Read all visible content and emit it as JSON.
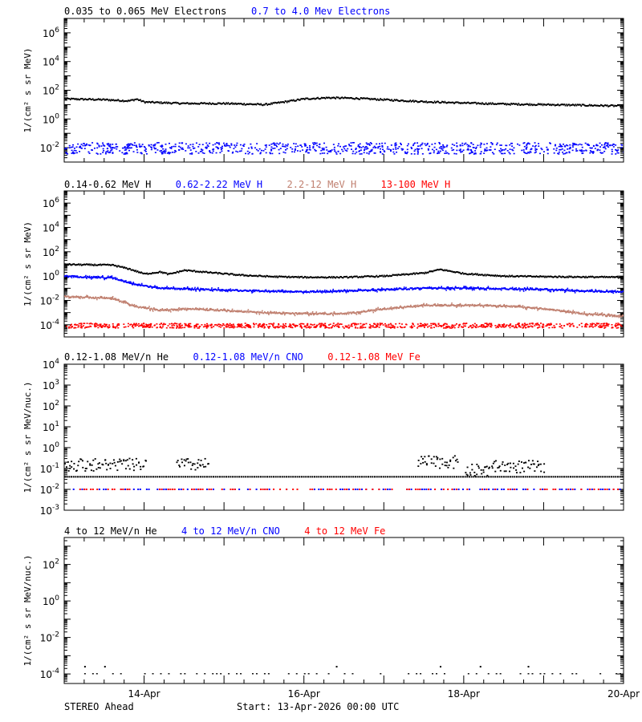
{
  "footer": {
    "left": "STEREO Ahead",
    "center": "Start: 13-Apr-2026 00:00 UTC"
  },
  "x_axis": {
    "range_days": [
      0,
      7
    ],
    "tick_positions_days": [
      1,
      3,
      5,
      7
    ],
    "tick_labels": [
      "14-Apr",
      "16-Apr",
      "18-Apr",
      "20-Apr"
    ]
  },
  "chart_data": [
    {
      "type": "scatter",
      "title_entries": [
        {
          "text": "0.035 to 0.065 MeV Electrons",
          "color": "#000000"
        },
        {
          "text": "0.7 to 4.0 Mev Electrons",
          "color": "#0000ff"
        }
      ],
      "ylabel": "1/(cm² s sr MeV)",
      "y_scale": "log",
      "ylim": [
        0.001,
        10000000
      ],
      "y_ticks": [
        {
          "v": 0.01,
          "mant": "10",
          "exp": "-2"
        },
        {
          "v": 1,
          "mant": "10",
          "exp": "0"
        },
        {
          "v": 100,
          "mant": "10",
          "exp": "2"
        },
        {
          "v": 10000,
          "mant": "10",
          "exp": "4"
        },
        {
          "v": 1000000,
          "mant": "10",
          "exp": "6"
        }
      ],
      "series": [
        {
          "color": "#000000",
          "points": [
            [
              0,
              25
            ],
            [
              0.5,
              22
            ],
            [
              0.8,
              18
            ],
            [
              0.9,
              24
            ],
            [
              1.0,
              15
            ],
            [
              1.5,
              12
            ],
            [
              2.0,
              12
            ],
            [
              2.5,
              10
            ],
            [
              2.7,
              14
            ],
            [
              3.0,
              25
            ],
            [
              3.3,
              30
            ],
            [
              3.6,
              28
            ],
            [
              4.0,
              22
            ],
            [
              4.5,
              16
            ],
            [
              5.0,
              13
            ],
            [
              5.5,
              11
            ],
            [
              6.0,
              10
            ],
            [
              6.5,
              9
            ],
            [
              7.0,
              8
            ]
          ]
        },
        {
          "color": "#0000ff",
          "scatter_range": [
            0.004,
            0.025
          ],
          "points": [
            [
              0,
              0.01
            ],
            [
              7,
              0.012
            ]
          ]
        }
      ]
    },
    {
      "type": "scatter",
      "title_entries": [
        {
          "text": "0.14-0.62 MeV H",
          "color": "#000000"
        },
        {
          "text": "0.62-2.22 MeV H",
          "color": "#0000ff"
        },
        {
          "text": "2.2-12 MeV H",
          "color": "#c08070"
        },
        {
          "text": "13-100 MeV H",
          "color": "#ff0000"
        }
      ],
      "ylabel": "1/(cm² s sr MeV)",
      "y_scale": "log",
      "ylim": [
        1e-05,
        10000000
      ],
      "y_ticks": [
        {
          "v": 0.0001,
          "mant": "10",
          "exp": "-4"
        },
        {
          "v": 0.01,
          "mant": "10",
          "exp": "-2"
        },
        {
          "v": 1,
          "mant": "10",
          "exp": "0"
        },
        {
          "v": 100,
          "mant": "10",
          "exp": "2"
        },
        {
          "v": 10000,
          "mant": "10",
          "exp": "4"
        },
        {
          "v": 1000000,
          "mant": "10",
          "exp": "6"
        }
      ],
      "series": [
        {
          "color": "#000000",
          "points": [
            [
              0,
              9
            ],
            [
              0.6,
              8
            ],
            [
              0.8,
              4
            ],
            [
              1.0,
              1.5
            ],
            [
              1.2,
              2.2
            ],
            [
              1.3,
              1.4
            ],
            [
              1.5,
              3
            ],
            [
              1.8,
              2
            ],
            [
              2.2,
              1.2
            ],
            [
              2.6,
              0.9
            ],
            [
              3.0,
              0.8
            ],
            [
              3.5,
              0.8
            ],
            [
              4.0,
              1.0
            ],
            [
              4.5,
              1.8
            ],
            [
              4.7,
              3.5
            ],
            [
              5.0,
              1.6
            ],
            [
              5.5,
              1.0
            ],
            [
              6.0,
              0.9
            ],
            [
              7.0,
              0.8
            ]
          ]
        },
        {
          "color": "#0000ff",
          "points": [
            [
              0,
              1.0
            ],
            [
              0.6,
              0.7
            ],
            [
              0.9,
              0.2
            ],
            [
              1.2,
              0.1
            ],
            [
              1.5,
              0.09
            ],
            [
              2.0,
              0.07
            ],
            [
              3.0,
              0.05
            ],
            [
              3.5,
              0.06
            ],
            [
              4.0,
              0.08
            ],
            [
              4.5,
              0.1
            ],
            [
              5.0,
              0.1
            ],
            [
              5.5,
              0.09
            ],
            [
              6.0,
              0.08
            ],
            [
              6.5,
              0.06
            ],
            [
              7.0,
              0.05
            ]
          ]
        },
        {
          "color": "#c08070",
          "points": [
            [
              0,
              0.02
            ],
            [
              0.6,
              0.015
            ],
            [
              0.9,
              0.003
            ],
            [
              1.2,
              0.0015
            ],
            [
              1.5,
              0.002
            ],
            [
              2.0,
              0.0015
            ],
            [
              2.5,
              0.001
            ],
            [
              3.0,
              0.0008
            ],
            [
              3.5,
              0.0008
            ],
            [
              4.0,
              0.002
            ],
            [
              4.5,
              0.004
            ],
            [
              5.0,
              0.004
            ],
            [
              5.5,
              0.0035
            ],
            [
              6.0,
              0.002
            ],
            [
              6.5,
              0.0008
            ],
            [
              7.0,
              0.0005
            ]
          ]
        },
        {
          "color": "#ff0000",
          "scatter_range": [
            6e-05,
            0.00015
          ],
          "points": [
            [
              0,
              0.0001
            ],
            [
              7,
              0.0001
            ]
          ]
        }
      ]
    },
    {
      "type": "scatter",
      "title_entries": [
        {
          "text": "0.12-1.08 MeV/n He",
          "color": "#000000"
        },
        {
          "text": "0.12-1.08 MeV/n CNO",
          "color": "#0000ff"
        },
        {
          "text": "0.12-1.08 MeV Fe",
          "color": "#ff0000"
        }
      ],
      "ylabel": "1/(cm² s sr MeV/nuc.)",
      "y_scale": "log",
      "ylim": [
        0.001,
        10000
      ],
      "y_ticks": [
        {
          "v": 0.001,
          "mant": "10",
          "exp": "-3"
        },
        {
          "v": 0.01,
          "mant": "10",
          "exp": "-2"
        },
        {
          "v": 0.1,
          "mant": "10",
          "exp": "-1"
        },
        {
          "v": 1,
          "mant": "10",
          "exp": "0"
        },
        {
          "v": 10,
          "mant": "10",
          "exp": "1"
        },
        {
          "v": 100,
          "mant": "10",
          "exp": "2"
        },
        {
          "v": 1000,
          "mant": "10",
          "exp": "3"
        },
        {
          "v": 10000,
          "mant": "10",
          "exp": "4"
        }
      ],
      "series": [
        {
          "color": "#000000",
          "baseline": 0.04,
          "bursts": [
            [
              0,
              1.0,
              0.15
            ],
            [
              1.4,
              1.8,
              0.15
            ],
            [
              4.4,
              4.9,
              0.2
            ],
            [
              5.0,
              5.3,
              0.08
            ],
            [
              5.3,
              6.0,
              0.12
            ]
          ]
        },
        {
          "color": "#0000ff",
          "baseline": 0.01
        },
        {
          "color": "#ff0000",
          "baseline": 0.01
        }
      ]
    },
    {
      "type": "scatter",
      "title_entries": [
        {
          "text": "4 to 12 MeV/n He",
          "color": "#000000"
        },
        {
          "text": "4 to 12 MeV/n CNO",
          "color": "#0000ff"
        },
        {
          "text": "4 to 12 MeV Fe",
          "color": "#ff0000"
        }
      ],
      "ylabel": "1/(cm² s sr MeV/nuc.)",
      "y_scale": "log",
      "ylim": [
        3e-05,
        3000
      ],
      "y_ticks": [
        {
          "v": 0.0001,
          "mant": "10",
          "exp": "-4"
        },
        {
          "v": 0.01,
          "mant": "10",
          "exp": "-2"
        },
        {
          "v": 1,
          "mant": "10",
          "exp": "0"
        },
        {
          "v": 100,
          "mant": "10",
          "exp": "2"
        }
      ],
      "series": [
        {
          "color": "#000000",
          "baseline": 0.0001,
          "sparse": true
        }
      ]
    }
  ]
}
